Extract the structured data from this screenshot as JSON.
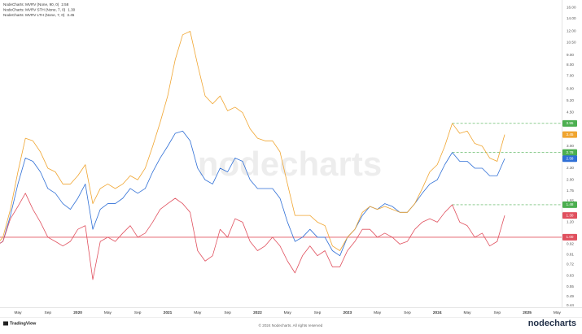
{
  "chart_data": {
    "type": "line",
    "watermark": "nodecharts",
    "footer": "© 2024 Nodecharts. All rights reserved",
    "brand_left": "TradingView",
    "brand_right": "nodecharts",
    "log_scale": true,
    "grid": false,
    "legend_position": "top-left",
    "x": [
      "2019-02",
      "2019-03",
      "2019-04",
      "2019-05",
      "2019-06",
      "2019-07",
      "2019-08",
      "2019-09",
      "2019-10",
      "2019-11",
      "2019-12",
      "2020-01",
      "2020-02",
      "2020-03",
      "2020-04",
      "2020-05",
      "2020-06",
      "2020-07",
      "2020-08",
      "2020-09",
      "2020-10",
      "2020-11",
      "2020-12",
      "2021-01",
      "2021-02",
      "2021-03",
      "2021-04",
      "2021-05",
      "2021-06",
      "2021-07",
      "2021-08",
      "2021-09",
      "2021-10",
      "2021-11",
      "2021-12",
      "2022-01",
      "2022-02",
      "2022-03",
      "2022-04",
      "2022-05",
      "2022-06",
      "2022-07",
      "2022-08",
      "2022-09",
      "2022-10",
      "2022-11",
      "2022-12",
      "2023-01",
      "2023-02",
      "2023-03",
      "2023-04",
      "2023-05",
      "2023-06",
      "2023-07",
      "2023-08",
      "2023-09",
      "2023-10",
      "2023-11",
      "2023-12",
      "2024-01",
      "2024-02",
      "2024-03",
      "2024-04",
      "2024-05",
      "2024-06",
      "2024-07",
      "2024-08",
      "2024-09",
      "2024-10"
    ],
    "series": [
      {
        "name": "NodeCharts: MVRV (None, 90, 0)",
        "color": "#2f6fd6",
        "values": [
          0.9,
          0.95,
          1.3,
          1.9,
          2.6,
          2.5,
          2.2,
          1.8,
          1.7,
          1.5,
          1.4,
          1.6,
          1.9,
          1.1,
          1.4,
          1.5,
          1.5,
          1.6,
          1.8,
          1.7,
          1.8,
          2.2,
          2.6,
          3.0,
          3.5,
          3.6,
          3.2,
          2.3,
          2.0,
          1.9,
          2.3,
          2.2,
          2.6,
          2.5,
          2.0,
          1.8,
          1.8,
          1.8,
          1.6,
          1.2,
          0.95,
          1.0,
          1.1,
          1.0,
          1.0,
          0.85,
          0.8,
          1.0,
          1.1,
          1.3,
          1.45,
          1.4,
          1.5,
          1.45,
          1.35,
          1.35,
          1.5,
          1.7,
          1.9,
          2.0,
          2.4,
          2.78,
          2.5,
          2.5,
          2.3,
          2.3,
          2.1,
          2.1,
          2.58
        ]
      },
      {
        "name": "NodeCharts: MVRV STH (None, 7, 0)",
        "color": "#e0505e",
        "values": [
          0.9,
          0.95,
          1.25,
          1.45,
          1.7,
          1.4,
          1.2,
          1.0,
          0.95,
          0.9,
          0.95,
          1.1,
          1.15,
          0.6,
          0.95,
          1.0,
          0.95,
          1.05,
          1.15,
          1.0,
          1.05,
          1.2,
          1.4,
          1.5,
          1.6,
          1.5,
          1.35,
          0.85,
          0.75,
          0.8,
          1.1,
          1.0,
          1.25,
          1.2,
          0.95,
          0.85,
          0.9,
          1.0,
          0.9,
          0.75,
          0.65,
          0.8,
          0.9,
          0.8,
          0.85,
          0.7,
          0.7,
          0.85,
          0.95,
          1.1,
          1.1,
          1.0,
          1.05,
          1.0,
          0.92,
          0.95,
          1.1,
          1.2,
          1.25,
          1.2,
          1.35,
          1.48,
          1.2,
          1.15,
          1.0,
          1.05,
          0.9,
          0.95,
          1.3
        ],
        "value_labels": {
          "68": "1.30"
        }
      },
      {
        "name": "NodeCharts: MVRV LTH (None, 7, 0)",
        "color": "#f0a530",
        "values": [
          0.9,
          1.0,
          1.4,
          2.2,
          3.3,
          3.2,
          2.8,
          2.3,
          2.2,
          1.9,
          1.9,
          2.1,
          2.4,
          1.5,
          1.8,
          1.9,
          1.8,
          1.9,
          2.1,
          2.0,
          2.3,
          3.0,
          4.0,
          5.5,
          8.5,
          11.5,
          12.0,
          8.0,
          5.5,
          5.0,
          5.5,
          4.6,
          4.8,
          4.5,
          3.7,
          3.3,
          3.2,
          3.2,
          2.8,
          1.9,
          1.3,
          1.3,
          1.3,
          1.2,
          1.15,
          0.9,
          0.85,
          1.0,
          1.1,
          1.35,
          1.45,
          1.4,
          1.45,
          1.4,
          1.35,
          1.35,
          1.5,
          1.8,
          2.2,
          2.4,
          3.0,
          3.95,
          3.5,
          3.6,
          3.1,
          3.0,
          2.6,
          2.5,
          3.45
        ]
      }
    ],
    "reference_lines": [
      {
        "value": 1.0,
        "label": "1.00",
        "color": "#e0505e",
        "style": "solid"
      },
      {
        "value": 3.95,
        "color": "#4caf50",
        "style": "dashed",
        "from": "2024-03"
      },
      {
        "value": 2.78,
        "color": "#4caf50",
        "style": "dashed",
        "from": "2024-03"
      },
      {
        "value": 1.48,
        "color": "#4caf50",
        "style": "dashed",
        "from": "2024-03"
      }
    ],
    "ylim": [
      0.43,
      17.5
    ],
    "yticks": [
      {
        "value": 16,
        "label": "16.00"
      },
      {
        "value": 14,
        "label": "14.00"
      },
      {
        "value": 12,
        "label": "12.00"
      },
      {
        "value": 10.5,
        "label": "10.50"
      },
      {
        "value": 9,
        "label": "9.00"
      },
      {
        "value": 8,
        "label": "8.00"
      },
      {
        "value": 7,
        "label": "7.00"
      },
      {
        "value": 6,
        "label": "6.00"
      },
      {
        "value": 5.2,
        "label": "5.20"
      },
      {
        "value": 4.5,
        "label": "4.50"
      },
      {
        "value": 3.5,
        "label": "3.50"
      },
      {
        "value": 3,
        "label": "3.00"
      },
      {
        "value": 2.3,
        "label": "2.30"
      },
      {
        "value": 2,
        "label": "2.00"
      },
      {
        "value": 1.75,
        "label": "1.75"
      },
      {
        "value": 1.55,
        "label": "1.55"
      },
      {
        "value": 1.2,
        "label": "1.20"
      },
      {
        "value": 0.92,
        "label": "0.92"
      },
      {
        "value": 0.81,
        "label": "0.81"
      },
      {
        "value": 0.72,
        "label": "0.72"
      },
      {
        "value": 0.63,
        "label": "0.63"
      },
      {
        "value": 0.55,
        "label": "0.55"
      },
      {
        "value": 0.49,
        "label": "0.49"
      },
      {
        "value": 0.44,
        "label": "0.44"
      }
    ],
    "xticks": [
      {
        "value": "2019-05",
        "label": "May"
      },
      {
        "value": "2019-09",
        "label": "Sep"
      },
      {
        "value": "2020-01",
        "label": "2020"
      },
      {
        "value": "2020-05",
        "label": "May"
      },
      {
        "value": "2020-09",
        "label": "Sep"
      },
      {
        "value": "2021-01",
        "label": "2021"
      },
      {
        "value": "2021-05",
        "label": "May"
      },
      {
        "value": "2021-09",
        "label": "Sep"
      },
      {
        "value": "2022-01",
        "label": "2022"
      },
      {
        "value": "2022-05",
        "label": "May"
      },
      {
        "value": "2022-09",
        "label": "Sep"
      },
      {
        "value": "2023-01",
        "label": "2023"
      },
      {
        "value": "2023-05",
        "label": "May"
      },
      {
        "value": "2023-09",
        "label": "Sep"
      },
      {
        "value": "2024-01",
        "label": "2024"
      },
      {
        "value": "2024-05",
        "label": "May"
      },
      {
        "value": "2024-09",
        "label": "Sep"
      },
      {
        "value": "2025-01",
        "label": "2025"
      },
      {
        "value": "2025-05",
        "label": "May"
      }
    ]
  }
}
